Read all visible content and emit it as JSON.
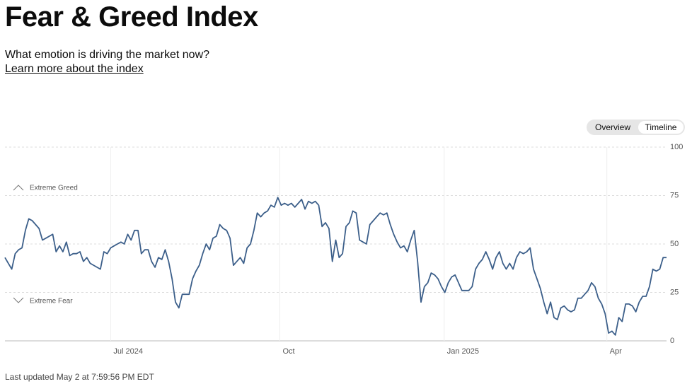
{
  "header": {
    "title": "Fear & Greed Index",
    "subtitle": "What emotion is driving the market now?",
    "link": "Learn more about the index"
  },
  "toggle": {
    "options": [
      "Overview",
      "Timeline"
    ],
    "selected": "Timeline"
  },
  "footer": "Last updated May 2 at 7:59:56 PM EDT",
  "chart_data": {
    "type": "line",
    "annotations": [
      "Extreme Greed",
      "Extreme Fear"
    ],
    "series": [
      {
        "color": "#3c5f8a",
        "values": [
          43,
          40,
          37,
          45,
          47,
          48,
          57,
          63,
          62,
          60,
          58,
          52,
          53,
          54,
          55,
          46,
          49,
          46,
          51,
          44,
          45,
          45,
          46,
          41,
          43,
          40,
          39,
          38,
          37,
          46,
          45,
          48,
          49,
          50,
          51,
          50,
          55,
          52,
          57,
          57,
          45,
          47,
          47,
          41,
          38,
          43,
          42,
          47,
          41,
          32,
          20,
          17,
          24,
          24,
          24,
          32,
          36,
          39,
          45,
          50,
          47,
          53,
          54,
          60,
          58,
          57,
          53,
          39,
          41,
          43,
          40,
          48,
          50,
          57,
          66,
          64,
          66,
          67,
          70,
          69,
          74,
          70,
          71,
          70,
          71,
          69,
          71,
          73,
          68,
          72,
          71,
          72,
          70,
          59,
          61,
          58,
          41,
          52,
          43,
          45,
          59,
          61,
          67,
          66,
          52,
          51,
          50,
          60,
          62,
          64,
          66,
          65,
          66,
          60,
          55,
          51,
          48,
          49,
          46,
          52,
          57,
          41,
          20,
          28,
          30,
          35,
          34,
          32,
          28,
          25,
          30,
          33,
          34,
          30,
          26,
          26,
          26,
          28,
          37,
          40,
          42,
          46,
          42,
          37,
          43,
          46,
          40,
          37,
          40,
          37,
          43,
          46,
          45,
          46,
          48,
          37,
          32,
          27,
          20,
          14,
          20,
          12,
          11,
          17,
          18,
          16,
          15,
          16,
          22,
          22,
          24,
          26,
          30,
          28,
          22,
          19,
          14,
          4,
          5,
          3,
          12,
          10,
          19,
          19,
          18,
          15,
          20,
          23,
          23,
          28,
          37,
          36,
          37,
          43,
          43
        ]
      }
    ],
    "xlim": [
      0,
      194
    ],
    "xticks": [
      {
        "value": 31,
        "label": "Jul 2024"
      },
      {
        "value": 80.6,
        "label": "Oct"
      },
      {
        "value": 128.8,
        "label": "Jan 2025"
      },
      {
        "value": 176.5,
        "label": "Apr"
      }
    ],
    "ylim": [
      0,
      100
    ],
    "yticks": [
      0,
      25,
      50,
      75,
      100
    ],
    "grid": true
  }
}
